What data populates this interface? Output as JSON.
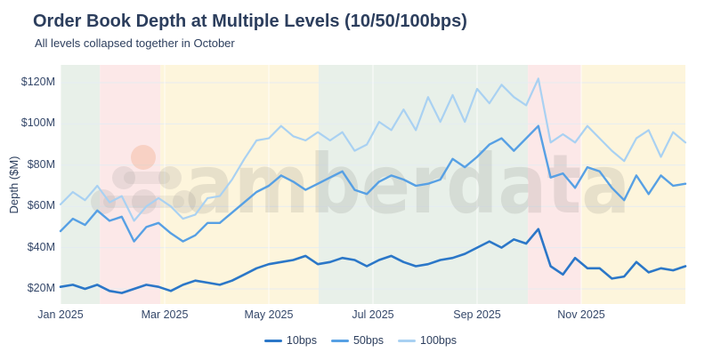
{
  "header": {
    "title": "Order Book Depth at Multiple Levels (10/50/100bps)",
    "subtitle": "All levels collapsed together in October"
  },
  "watermark": {
    "text": "amberdata"
  },
  "colors": {
    "title_text": "#2c3e5d",
    "axis_text": "#35486a",
    "gridline": "#e4ecf3",
    "watermark_grey": "#8d8b86",
    "watermark_orange": "#ef9d6f",
    "band_green": "#e8f0e9",
    "band_pink": "#fce8e8",
    "band_yellow": "#fdf5dc"
  },
  "chart_data": {
    "type": "line",
    "title": "Order Book Depth at Multiple Levels (10/50/100bps)",
    "subtitle": "All levels collapsed together in October",
    "xlabel": "",
    "ylabel": "Depth ($M)",
    "ylim": [
      13,
      129
    ],
    "y_ticks": [
      20,
      40,
      60,
      80,
      100,
      120
    ],
    "y_tick_labels": [
      "$20M",
      "$40M",
      "$60M",
      "$80M",
      "$100M",
      "$120M"
    ],
    "x_domain_months": 12,
    "x_tick_month_index": [
      0,
      2,
      4,
      6,
      8,
      10
    ],
    "x_tick_labels": [
      "Jan 2025",
      "Mar 2025",
      "May 2025",
      "Jul 2025",
      "Sep 2025",
      "Nov 2025"
    ],
    "x_sampling": "52 weekly samples, Jan 2025 through Dec 2025",
    "grid": true,
    "legend_position": "bottom-center",
    "series": [
      {
        "name": "10bps",
        "color": "#2b77c8",
        "width": 2.6,
        "values": [
          21,
          22,
          20,
          22,
          19,
          18,
          20,
          22,
          21,
          19,
          22,
          24,
          23,
          22,
          24,
          27,
          30,
          32,
          33,
          34,
          36,
          32,
          33,
          35,
          34,
          31,
          34,
          36,
          33,
          31,
          32,
          34,
          35,
          37,
          40,
          43,
          40,
          44,
          42,
          49,
          31,
          27,
          35,
          30,
          30,
          25,
          26,
          33,
          28,
          30,
          29,
          31
        ]
      },
      {
        "name": "50bps",
        "color": "#57a0e4",
        "width": 2.4,
        "values": [
          48,
          54,
          51,
          58,
          53,
          55,
          43,
          50,
          52,
          47,
          43,
          46,
          52,
          52,
          57,
          62,
          67,
          70,
          75,
          72,
          68,
          71,
          74,
          77,
          68,
          66,
          72,
          75,
          73,
          70,
          71,
          73,
          83,
          79,
          84,
          90,
          93,
          87,
          93,
          99,
          74,
          76,
          69,
          79,
          77,
          69,
          63,
          75,
          66,
          75,
          70,
          71
        ]
      },
      {
        "name": "100bps",
        "color": "#a9d1f2",
        "width": 2.2,
        "values": [
          61,
          67,
          63,
          70,
          62,
          65,
          53,
          60,
          64,
          60,
          54,
          56,
          64,
          65,
          73,
          83,
          92,
          93,
          99,
          94,
          92,
          96,
          92,
          96,
          87,
          90,
          101,
          97,
          107,
          97,
          113,
          101,
          114,
          101,
          117,
          110,
          119,
          113,
          109,
          122,
          91,
          95,
          91,
          99,
          93,
          87,
          82,
          93,
          97,
          84,
          96,
          91
        ]
      }
    ],
    "background_bands": [
      {
        "from": 0.0,
        "to": 0.063,
        "color_key": "band_green",
        "note": "Jan"
      },
      {
        "from": 0.063,
        "to": 0.16,
        "color_key": "band_pink",
        "note": "Feb"
      },
      {
        "from": 0.16,
        "to": 0.413,
        "color_key": "band_yellow",
        "note": "Mar-May"
      },
      {
        "from": 0.413,
        "to": 0.748,
        "color_key": "band_green",
        "note": "Jun-Sep"
      },
      {
        "from": 0.748,
        "to": 0.833,
        "color_key": "band_pink",
        "note": "Oct (levels collapse)"
      },
      {
        "from": 0.833,
        "to": 1.0,
        "color_key": "band_yellow",
        "note": "Nov-Dec"
      }
    ]
  }
}
